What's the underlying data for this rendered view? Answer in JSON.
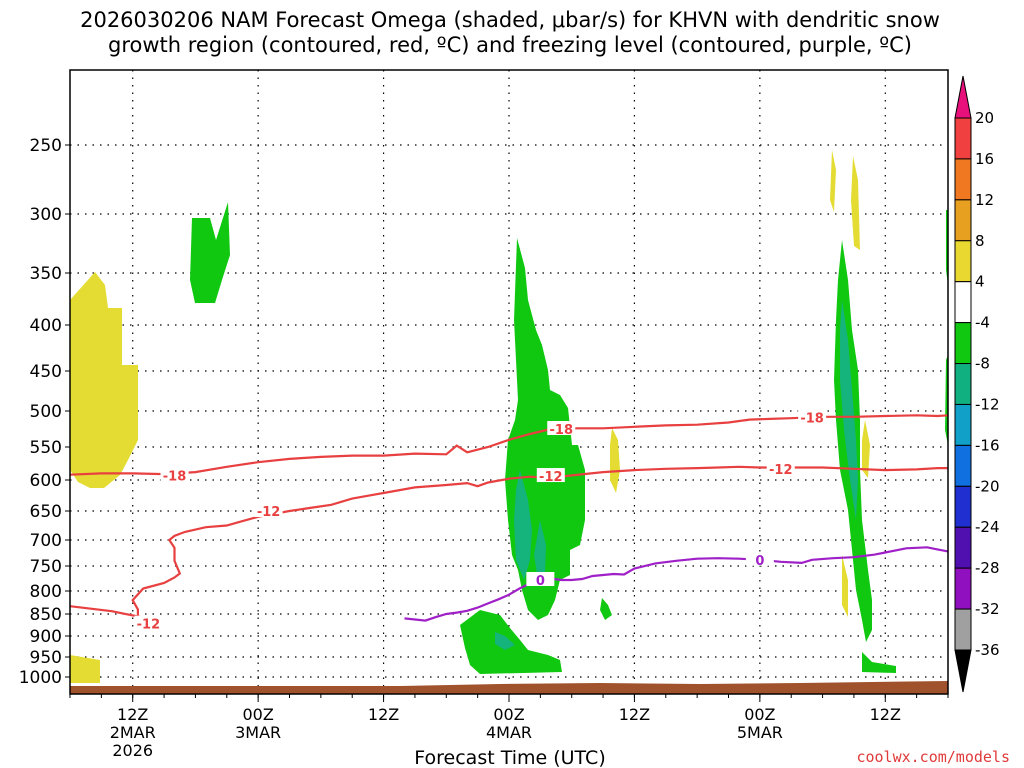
{
  "chart_data": {
    "type": "time-height cross section",
    "title_line1": "2026030206 NAM Forecast Omega (shaded, μbar/s) for KHVN with dendritic snow",
    "title_line2": "growth region (contoured, red, ºC) and freezing level (contoured, purple, ºC)",
    "xlabel": "Forecast Time (UTC)",
    "credit": "coolwx.com/models",
    "y_axis": {
      "type": "pressure (mb)",
      "ticks": [
        "250",
        "300",
        "350",
        "400",
        "450",
        "500",
        "550",
        "600",
        "650",
        "700",
        "750",
        "800",
        "850",
        "900",
        "950",
        "1000"
      ]
    },
    "x_ticks": [
      {
        "line1": "12Z",
        "line2": "2MAR",
        "line3": "2026",
        "hours": 6
      },
      {
        "line1": "00Z",
        "line2": "3MAR",
        "line3": "",
        "hours": 18
      },
      {
        "line1": "12Z",
        "line2": "",
        "line3": "",
        "hours": 30
      },
      {
        "line1": "00Z",
        "line2": "4MAR",
        "line3": "",
        "hours": 42
      },
      {
        "line1": "12Z",
        "line2": "",
        "line3": "",
        "hours": 54
      },
      {
        "line1": "00Z",
        "line2": "5MAR",
        "line3": "",
        "hours": 66
      },
      {
        "line1": "12Z",
        "line2": "",
        "line3": "",
        "hours": 78
      }
    ],
    "x_range_hours": [
      0,
      84
    ],
    "colorbar": {
      "labels": [
        "20",
        "16",
        "12",
        "8",
        "4",
        "-4",
        "-8",
        "-12",
        "-16",
        "-20",
        "-24",
        "-28",
        "-32",
        "-36"
      ],
      "colors": [
        "#e8107a",
        "#f04040",
        "#f07820",
        "#e8a020",
        "#e8d830",
        "#ffffff",
        "#10c810",
        "#10b080",
        "#10a0c8",
        "#1070e0",
        "#2030d0",
        "#5010b0",
        "#9010c0",
        "#a0a0a0",
        "#000000"
      ]
    },
    "series": [
      {
        "name": "-18 °C isotherm (dendritic growth top)",
        "color": "#e84040",
        "label": "-18",
        "points": [
          [
            0,
            592
          ],
          [
            3,
            590
          ],
          [
            6,
            590
          ],
          [
            9,
            591
          ],
          [
            12,
            588
          ],
          [
            15,
            580
          ],
          [
            18,
            573
          ],
          [
            21,
            568
          ],
          [
            24,
            565
          ],
          [
            27,
            563
          ],
          [
            30,
            563
          ],
          [
            33,
            560
          ],
          [
            36,
            561
          ],
          [
            37,
            548
          ],
          [
            38,
            558
          ],
          [
            40,
            550
          ],
          [
            42,
            540
          ],
          [
            44,
            532
          ],
          [
            46,
            525
          ],
          [
            48,
            524
          ],
          [
            51,
            524
          ],
          [
            54,
            522
          ],
          [
            57,
            520
          ],
          [
            60,
            519
          ],
          [
            63,
            516
          ],
          [
            65,
            512
          ],
          [
            67,
            511
          ],
          [
            69,
            510
          ],
          [
            72,
            508
          ],
          [
            75,
            508
          ],
          [
            78,
            507
          ],
          [
            81,
            506
          ],
          [
            83,
            507
          ],
          [
            84,
            506
          ]
        ],
        "label_at": [
          [
            10,
            593
          ],
          [
            47,
            525
          ],
          [
            71,
            509
          ]
        ]
      },
      {
        "name": "-12 °C isotherm (dendritic growth bottom)",
        "color": "#e84040",
        "label": "-12",
        "points": [
          [
            0,
            833
          ],
          [
            4,
            844
          ],
          [
            7,
            858
          ],
          [
            7.5,
            871
          ],
          [
            6.5,
            854
          ],
          [
            6.5,
            840
          ],
          [
            6,
            820
          ],
          [
            7,
            795
          ],
          [
            9,
            784
          ],
          [
            10,
            773
          ],
          [
            10.5,
            765
          ],
          [
            10,
            740
          ],
          [
            10,
            715
          ],
          [
            9.5,
            700
          ],
          [
            10,
            693
          ],
          [
            11,
            686
          ],
          [
            13,
            678
          ],
          [
            15,
            675
          ],
          [
            16,
            670
          ],
          [
            18,
            660
          ],
          [
            21,
            650
          ],
          [
            23,
            645
          ],
          [
            25,
            640
          ],
          [
            27,
            630
          ],
          [
            30,
            621
          ],
          [
            33,
            612
          ],
          [
            36,
            608
          ],
          [
            38,
            605
          ],
          [
            39,
            610
          ],
          [
            40,
            604
          ],
          [
            42,
            598
          ],
          [
            44,
            595
          ],
          [
            46,
            597
          ],
          [
            48,
            593
          ],
          [
            51,
            588
          ],
          [
            54,
            585
          ],
          [
            57,
            583
          ],
          [
            60,
            582
          ],
          [
            62,
            581
          ],
          [
            64,
            580
          ],
          [
            66,
            581
          ],
          [
            68,
            581
          ],
          [
            70,
            581
          ],
          [
            72,
            581
          ],
          [
            75,
            583
          ],
          [
            78,
            585
          ],
          [
            81,
            584
          ],
          [
            83,
            582
          ],
          [
            84,
            582
          ]
        ],
        "label_at": [
          [
            7.5,
            872
          ],
          [
            19,
            650
          ],
          [
            46,
            594
          ],
          [
            68,
            583
          ]
        ]
      },
      {
        "name": "0 °C freezing level",
        "color": "#a020c8",
        "label": "0",
        "points": [
          [
            32,
            860
          ],
          [
            34,
            865
          ],
          [
            35,
            857
          ],
          [
            36,
            850
          ],
          [
            37,
            847
          ],
          [
            38,
            843
          ],
          [
            39,
            836
          ],
          [
            40,
            827
          ],
          [
            41,
            818
          ],
          [
            42,
            808
          ],
          [
            43,
            795
          ],
          [
            44,
            785
          ],
          [
            45,
            777
          ],
          [
            46,
            775
          ],
          [
            47,
            778
          ],
          [
            48,
            778
          ],
          [
            49,
            776
          ],
          [
            50,
            770
          ],
          [
            51,
            768
          ],
          [
            52,
            766
          ],
          [
            53,
            767
          ],
          [
            54,
            755
          ],
          [
            56,
            745
          ],
          [
            58,
            740
          ],
          [
            60,
            736
          ],
          [
            62,
            735
          ],
          [
            64,
            736
          ],
          [
            66,
            738
          ],
          [
            68,
            742
          ],
          [
            70,
            744
          ],
          [
            71,
            738
          ],
          [
            73,
            735
          ],
          [
            75,
            733
          ],
          [
            77,
            728
          ],
          [
            78,
            724
          ],
          [
            80,
            716
          ],
          [
            82,
            714
          ],
          [
            83,
            718
          ],
          [
            84,
            722
          ]
        ],
        "label_at": [
          [
            45,
            778
          ],
          [
            66,
            738
          ]
        ]
      }
    ]
  }
}
